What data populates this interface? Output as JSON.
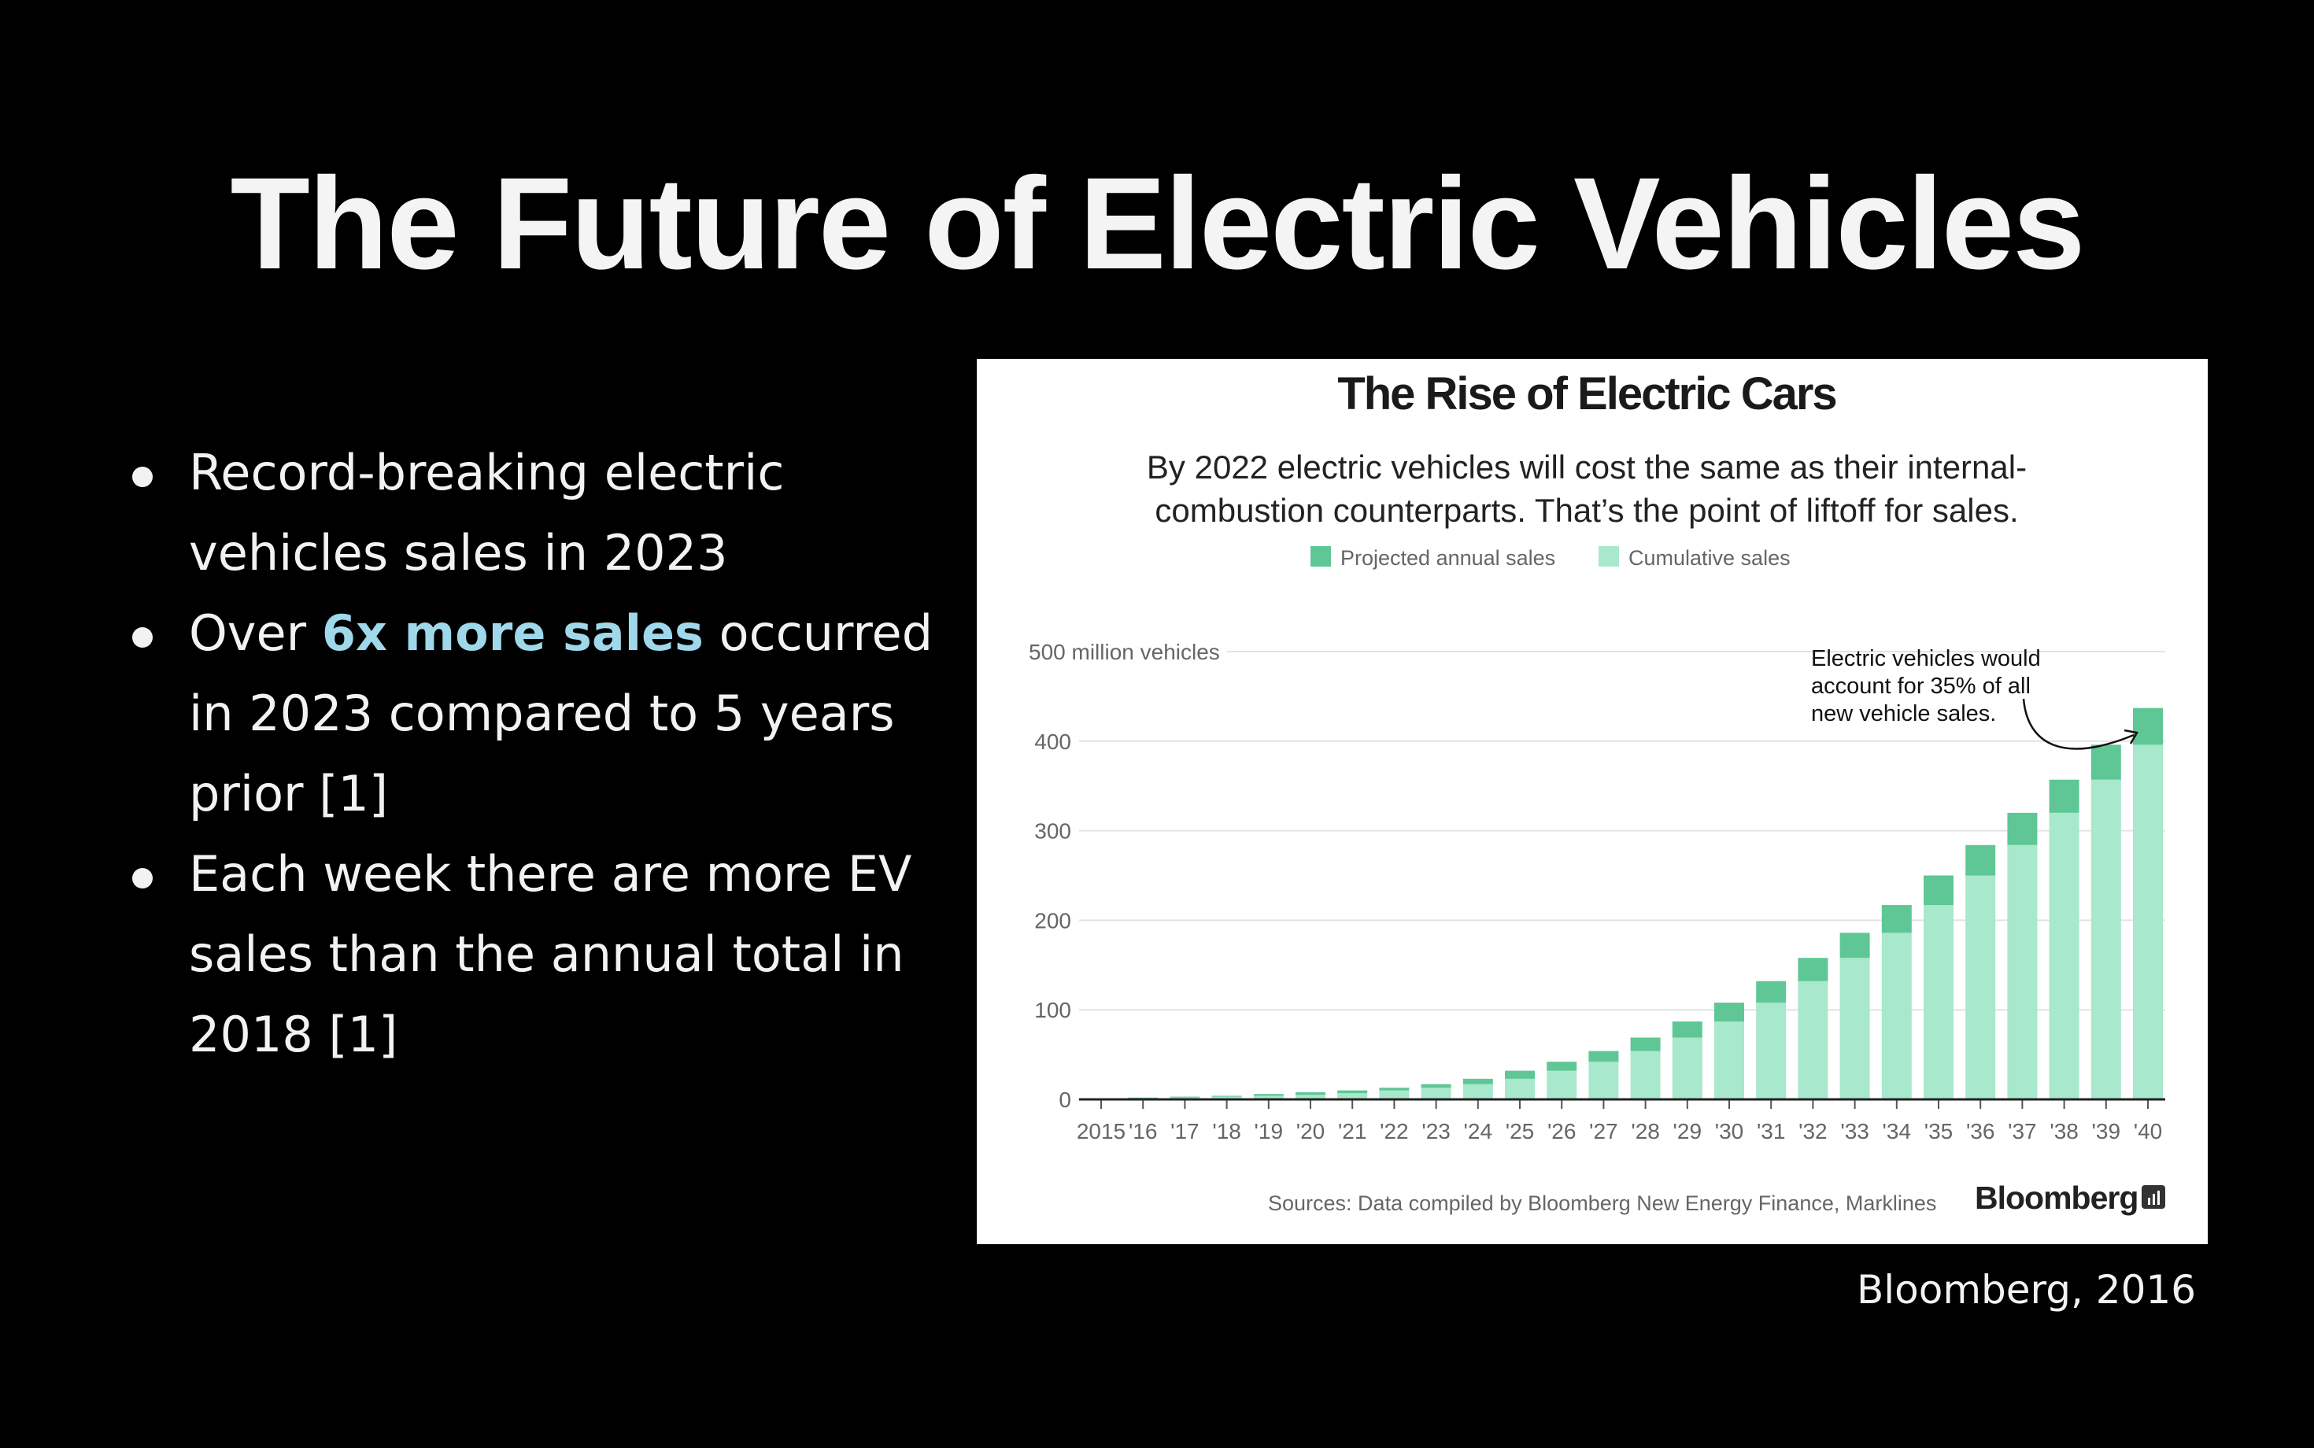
{
  "slide": {
    "title": "The Future of Electric Vehicles",
    "bullets": [
      {
        "parts": [
          "Record-breaking electric vehicles sales in 2023"
        ]
      },
      {
        "before": "Over ",
        "highlight": "6x more sales",
        "after": " occurred in 2023 compared to 5 years prior [1]"
      },
      {
        "parts": [
          "Each week there are more EV sales than the annual total in 2018 [1]"
        ]
      }
    ],
    "caption": "Bloomberg, 2016",
    "highlight_color": "#9fd8ea"
  },
  "chart_data": {
    "type": "bar",
    "stacked": true,
    "title": "The Rise of Electric Cars",
    "subtitle_lines": [
      "By 2022 electric vehicles will cost the same as their internal-",
      "combustion counterparts. That’s the point of liftoff for sales."
    ],
    "legend": [
      {
        "name": "Projected annual sales",
        "color": "#5ec795"
      },
      {
        "name": "Cumulative sales",
        "color": "#a8e8cd"
      }
    ],
    "y_unit_label": "500 million vehicles",
    "y_ticks": [
      0,
      100,
      200,
      300,
      400,
      500
    ],
    "ylim": [
      0,
      500
    ],
    "categories": [
      "2015",
      "'16",
      "'17",
      "'18",
      "'19",
      "'20",
      "'21",
      "'22",
      "'23",
      "'24",
      "'25",
      "'26",
      "'27",
      "'28",
      "'29",
      "'30",
      "'31",
      "'32",
      "'33",
      "'34",
      "'35",
      "'36",
      "'37",
      "'38",
      "'39",
      "'40"
    ],
    "series": [
      {
        "name": "Cumulative sales",
        "values": [
          0,
          1,
          2,
          3,
          4,
          5,
          7,
          10,
          13,
          17,
          23,
          32,
          42,
          54,
          69,
          87,
          108,
          132,
          158,
          186,
          217,
          250,
          284,
          320,
          357,
          396
        ]
      },
      {
        "name": "Projected annual sales",
        "values": [
          0,
          1,
          1,
          1,
          2,
          3,
          3,
          3,
          4,
          6,
          9,
          10,
          12,
          15,
          18,
          21,
          24,
          26,
          28,
          31,
          33,
          34,
          36,
          37,
          39,
          41
        ]
      }
    ],
    "annotation_lines": [
      "Electric vehicles would",
      "account for 35% of all",
      "new vehicle sales."
    ],
    "source": "Sources: Data compiled by Bloomberg New Energy Finance, Marklines",
    "brand": "Bloomberg",
    "grid": true,
    "colors": {
      "annual": "#5ec795",
      "cumulative": "#a8e8cd",
      "axis": "#222222",
      "grid": "#e3e3e3",
      "label": "#666666"
    }
  }
}
